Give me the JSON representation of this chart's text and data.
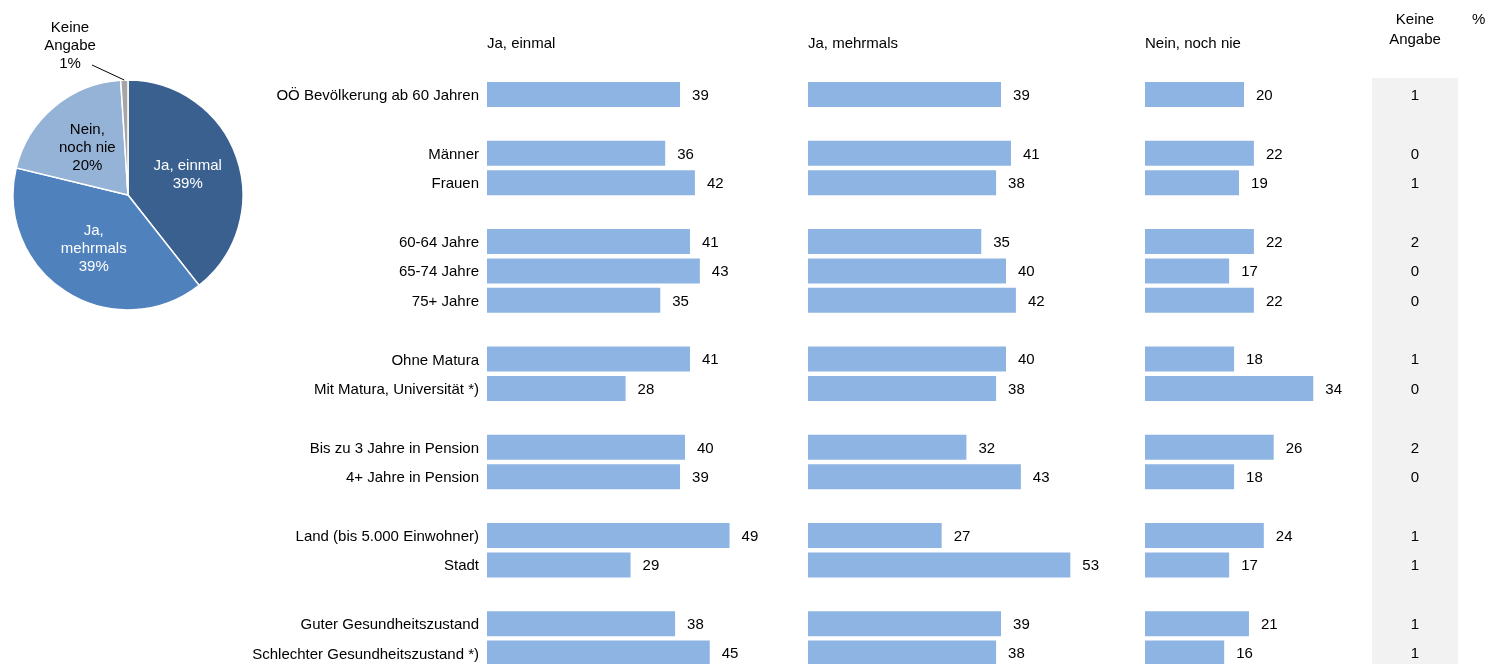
{
  "chart_data": [
    {
      "type": "pie",
      "categories": [
        "Ja, einmal",
        "Ja, mehrmals",
        "Nein, noch nie",
        "Keine Angabe"
      ],
      "values": [
        39,
        39,
        20,
        1
      ],
      "value_labels": [
        "39%",
        "39%",
        "20%",
        "1%"
      ],
      "colors": [
        "#3a6090",
        "#4f81bd",
        "#95b3d7",
        "#a6a6a6"
      ]
    },
    {
      "type": "bar",
      "orientation": "horizontal",
      "title": "Ja, einmal",
      "tick_labels": "y",
      "data_labels": true,
      "color": "#8db4e2",
      "categories": [
        "OÖ Bevölkerung ab 60 Jahren",
        null,
        "Männer",
        "Frauen",
        null,
        "60-64 Jahre",
        "65-74 Jahre",
        "75+ Jahre",
        null,
        "Ohne Matura",
        "Mit Matura, Universität *)",
        null,
        "Bis zu 3 Jahre in Pension",
        "4+ Jahre in Pension",
        null,
        "Land (bis 5.000 Einwohner)",
        "Stadt",
        null,
        "Guter Gesundheitszustand",
        "Schlechter Gesundheitszustand *)"
      ],
      "values": [
        39,
        null,
        36,
        42,
        null,
        41,
        43,
        35,
        null,
        41,
        28,
        null,
        40,
        39,
        null,
        49,
        29,
        null,
        38,
        45
      ]
    },
    {
      "type": "bar",
      "orientation": "horizontal",
      "title": "Ja, mehrmals",
      "tick_labels": false,
      "data_labels": true,
      "color": "#8db4e2",
      "categories": [
        null,
        null,
        null,
        null,
        null,
        null,
        null,
        null,
        null,
        null,
        null,
        null,
        null,
        null,
        null,
        null,
        null,
        null,
        null,
        null
      ],
      "values": [
        39,
        null,
        41,
        38,
        null,
        35,
        40,
        42,
        null,
        40,
        38,
        null,
        32,
        43,
        null,
        27,
        53,
        null,
        39,
        38
      ]
    },
    {
      "type": "bar",
      "orientation": "horizontal",
      "title": "Nein, noch nie",
      "tick_labels": false,
      "data_labels": true,
      "color": "#8db4e2",
      "categories": [
        null,
        null,
        null,
        null,
        null,
        null,
        null,
        null,
        null,
        null,
        null,
        null,
        null,
        null,
        null,
        null,
        null,
        null,
        null,
        null
      ],
      "values": [
        20,
        null,
        22,
        19,
        null,
        22,
        17,
        22,
        null,
        18,
        34,
        null,
        26,
        18,
        null,
        24,
        17,
        null,
        21,
        16
      ]
    },
    {
      "type": "other",
      "title": "Keine Angabe",
      "annotations": [
        "%"
      ],
      "data_labels": true,
      "values": [
        1,
        null,
        0,
        1,
        null,
        2,
        0,
        0,
        null,
        1,
        0,
        null,
        2,
        0,
        null,
        1,
        1,
        null,
        1,
        1
      ]
    }
  ]
}
